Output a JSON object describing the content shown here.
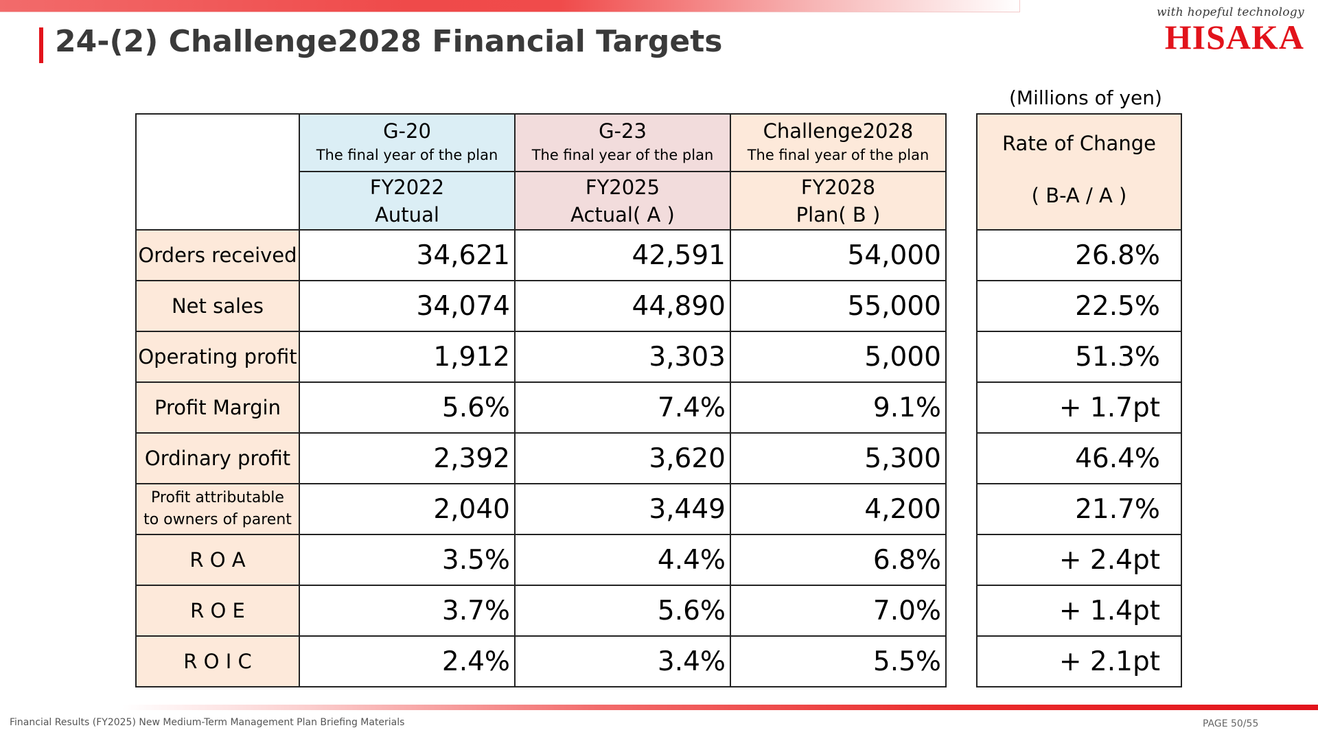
{
  "header": {
    "title": "24-(2) Challenge2028 Financial Targets",
    "tagline": "with hopeful technology",
    "brand": "HISAKA"
  },
  "unit_note": "(Millions of yen)",
  "table": {
    "columns": [
      {
        "plan": "G-20",
        "plan_note": "The final year of the plan",
        "fiscal_year": "FY2022",
        "type": "Autual"
      },
      {
        "plan": "G-23",
        "plan_note": "The final year of the plan",
        "fiscal_year": "FY2025",
        "type": "Actual( A )"
      },
      {
        "plan": "Challenge2028",
        "plan_note": "The final year of the plan",
        "fiscal_year": "FY2028",
        "type": "Plan( B )"
      }
    ],
    "rate_header": {
      "line1": "Rate of Change",
      "line2": "( B-A / A )"
    },
    "rows": [
      {
        "label": "Orders received",
        "values": [
          "34,621",
          "42,591",
          "54,000"
        ],
        "rate": "26.8%"
      },
      {
        "label": "Net sales",
        "values": [
          "34,074",
          "44,890",
          "55,000"
        ],
        "rate": "22.5%"
      },
      {
        "label": "Operating profit",
        "values": [
          "1,912",
          "3,303",
          "5,000"
        ],
        "rate": "51.3%"
      },
      {
        "label": "Profit Margin",
        "values": [
          "5.6%",
          "7.4%",
          "9.1%"
        ],
        "rate": "+ 1.7pt"
      },
      {
        "label": "Ordinary profit",
        "values": [
          "2,392",
          "3,620",
          "5,300"
        ],
        "rate": "46.4%"
      },
      {
        "label_line1": "Profit attributable",
        "label_line2": "to owners of parent",
        "values": [
          "2,040",
          "3,449",
          "4,200"
        ],
        "rate": "21.7%"
      },
      {
        "label": "R O A",
        "values": [
          "3.5%",
          "4.4%",
          "6.8%"
        ],
        "rate": "+ 2.4pt"
      },
      {
        "label": "R O E",
        "values": [
          "3.7%",
          "5.6%",
          "7.0%"
        ],
        "rate": "+ 1.4pt"
      },
      {
        "label": "R O I C",
        "values": [
          "2.4%",
          "3.4%",
          "5.5%"
        ],
        "rate": "+ 2.1pt"
      }
    ]
  },
  "footer": {
    "left": "Financial Results (FY2025) New Medium-Term Management Plan Briefing Materials",
    "page": "PAGE 50/55"
  },
  "colors": {
    "accent_red": "#e2131b",
    "header_blue": "#dbeef5",
    "header_pink": "#f2dcdc",
    "header_peach": "#fde9da"
  }
}
